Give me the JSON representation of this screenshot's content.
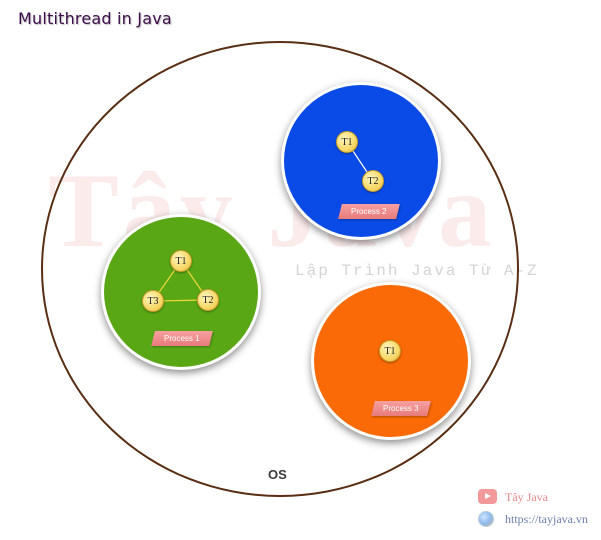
{
  "title": "Multithread in Java",
  "watermark": {
    "brand": "Tây Java",
    "tagline": "Lập Trình Java Từ A-Z"
  },
  "os": {
    "label": "OS"
  },
  "processes": [
    {
      "label": "Process 1",
      "color": "#5aa716",
      "threads": [
        "T1",
        "T2",
        "T3"
      ]
    },
    {
      "label": "Process 2",
      "color": "#0a4be8",
      "threads": [
        "T1",
        "T2"
      ]
    },
    {
      "label": "Process 3",
      "color": "#fa6a06",
      "threads": [
        "T1"
      ]
    }
  ],
  "footer": {
    "channel": "Tây Java",
    "url": "https://tayjava.vn"
  },
  "colors": {
    "os_border": "#5a2e14",
    "title": "#3d0f4a",
    "process_tag": "#e77b7b",
    "link_yellow": "#e8d838",
    "link_white": "#ffffff"
  }
}
